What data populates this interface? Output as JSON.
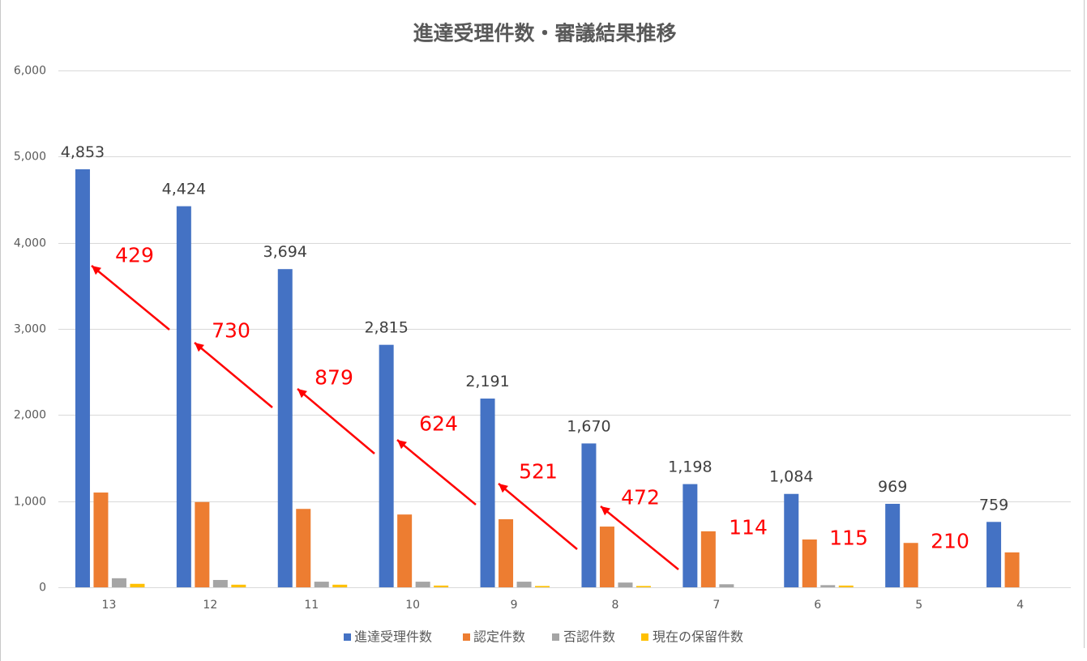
{
  "chart_data": {
    "type": "bar",
    "title": "進達受理件数・審議結果推移",
    "categories": [
      "13",
      "12",
      "11",
      "10",
      "9",
      "8",
      "7",
      "6",
      "5",
      "4"
    ],
    "ylim": [
      0,
      6000
    ],
    "yticks": [
      0,
      1000,
      2000,
      3000,
      4000,
      5000,
      6000
    ],
    "grid": true,
    "legend_position": "bottom",
    "series": [
      {
        "name": "進達受理件数",
        "color": "#4472c4",
        "values": [
          4853,
          4424,
          3694,
          2815,
          2191,
          1670,
          1198,
          1084,
          969,
          759
        ],
        "data_labels": true
      },
      {
        "name": "認定件数",
        "color": "#ed7d31",
        "values": [
          1100,
          990,
          910,
          845,
          790,
          705,
          650,
          555,
          515,
          405
        ]
      },
      {
        "name": "否認件数",
        "color": "#a5a5a5",
        "values": [
          105,
          85,
          65,
          65,
          65,
          55,
          35,
          25,
          0,
          0
        ]
      },
      {
        "name": "現在の保留件数",
        "color": "#ffc000",
        "values": [
          40,
          30,
          30,
          20,
          15,
          15,
          0,
          20,
          0,
          0
        ]
      }
    ],
    "annotations": [
      "429",
      "730",
      "879",
      "624",
      "521",
      "472",
      "114",
      "115",
      "210"
    ],
    "annotation_color": "#ff0000"
  }
}
